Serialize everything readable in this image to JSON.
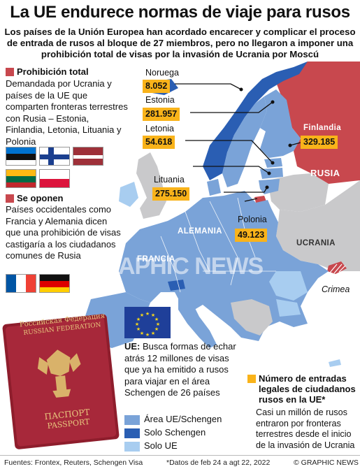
{
  "title": "La UE endurece normas de viaje para rusos",
  "subtitle": "Los países de la Unión Europea han acordado encarecer y complicar el proceso de entrada de rusos al bloque de 27 miembros, pero no llegaron a imponer una prohibición total de visas por la invasión de Ucrania por Moscú",
  "colors": {
    "ue_schengen": "#7aa3d8",
    "solo_schengen": "#2a5eb3",
    "solo_ue": "#a8cdf0",
    "russia": "#c8484e",
    "count_box": "#f9b31a",
    "non_eu_land": "#c9c9cb",
    "sea": "#ffffff"
  },
  "ban": {
    "heading": "Prohibición total",
    "text": "Demandada por Ucrania y países de la UE que comparten fronteras terrestres con Rusia – Estonia, Finlandia, Letonia, Lituania y Polonia",
    "flags": [
      "estonia-flag",
      "finland-flag",
      "latvia-flag",
      "lithuania-flag",
      "poland-flag"
    ]
  },
  "oppose": {
    "heading": "Se oponen",
    "text": "Países occidentales como Francia y Alemania dicen que una prohibición de visas castigaría a los ciudadanos comunes de Rusia",
    "flags": [
      "france-flag",
      "germany-flag"
    ]
  },
  "entries": [
    {
      "country": "Noruega",
      "value": "8.052"
    },
    {
      "country": "Estonia",
      "value": "281.957"
    },
    {
      "country": "Letonia",
      "value": "54.618"
    },
    {
      "country": "Lituania",
      "value": "275.150"
    },
    {
      "country": "Polonia",
      "value": "49.123"
    },
    {
      "country": "Finlandia",
      "value": "329.185"
    }
  ],
  "map_labels": {
    "russia": "RUSIA",
    "ukraine": "UCRANIA",
    "germany": "ALEMANIA",
    "france": "FRANCIA",
    "crimea": "Crimea"
  },
  "ue_note": {
    "label": "UE:",
    "text": "Busca formas de echar atrás 12 millones de visas que ya ha emitido a rusos para viajar en el área Schengen de 26 países"
  },
  "legend": [
    {
      "label": "Área UE/Schengen",
      "color": "#7aa3d8"
    },
    {
      "label": "Solo Schengen",
      "color": "#2a5eb3"
    },
    {
      "label": "Solo UE",
      "color": "#a8cdf0"
    }
  ],
  "count_legend": {
    "title": "Número de entradas legales de ciudadanos rusos en la UE*",
    "text": "Casi un millón de rusos entraron por fronteras terrestres desde el inicio de la invasión de Ucrania"
  },
  "passport": {
    "line1": "Российская Федерация",
    "line2": "RUSSIAN FEDERATION",
    "line3": "ПАСПОРТ",
    "line4": "PASSPORT"
  },
  "watermark": "GRAPHIC NEWS",
  "footer": {
    "sources": "Fuentes: Frontex, Reuters, Schengen Visa",
    "note": "*Datos de feb 24 a agt 22, 2022",
    "credit": "© GRAPHIC NEWS"
  }
}
